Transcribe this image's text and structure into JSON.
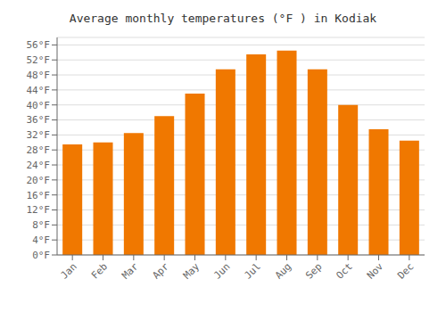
{
  "chart_data": {
    "type": "bar",
    "title": "Average monthly temperatures (°F ) in Kodiak",
    "categories": [
      "Jan",
      "Feb",
      "Mar",
      "Apr",
      "May",
      "Jun",
      "Jul",
      "Aug",
      "Sep",
      "Oct",
      "Nov",
      "Dec"
    ],
    "values": [
      29.5,
      30.0,
      32.5,
      37.0,
      43.0,
      49.5,
      53.5,
      54.5,
      49.5,
      40.0,
      33.5,
      30.5
    ],
    "color": "#F07800",
    "ylim": [
      0,
      58
    ],
    "yticks": [
      {
        "value": 0,
        "label": "0°F"
      },
      {
        "value": 4,
        "label": "4°F"
      },
      {
        "value": 8,
        "label": "8°F"
      },
      {
        "value": 12,
        "label": "12°F"
      },
      {
        "value": 16,
        "label": "16°F"
      },
      {
        "value": 20,
        "label": "20°F"
      },
      {
        "value": 24,
        "label": "24°F"
      },
      {
        "value": 28,
        "label": "28°F"
      },
      {
        "value": 32,
        "label": "32°F"
      },
      {
        "value": 36,
        "label": "36°F"
      },
      {
        "value": 40,
        "label": "40°F"
      },
      {
        "value": 44,
        "label": "44°F"
      },
      {
        "value": 48,
        "label": "48°F"
      },
      {
        "value": 52,
        "label": "52°F"
      },
      {
        "value": 56,
        "label": "56°F"
      }
    ],
    "grid": true
  }
}
